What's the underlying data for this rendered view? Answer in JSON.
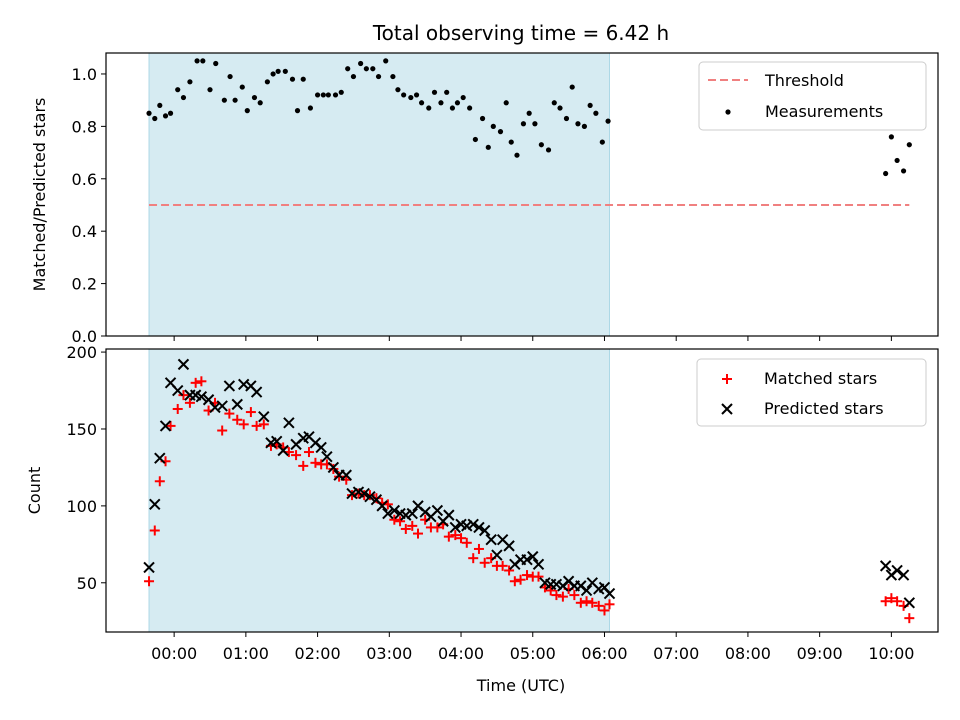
{
  "figure": {
    "title": "Total observing time = 6.42 h",
    "xlabel": "Time (UTC)",
    "x_tick_labels": [
      "00:00",
      "01:00",
      "02:00",
      "03:00",
      "04:00",
      "05:00",
      "06:00",
      "07:00",
      "08:00",
      "09:00",
      "10:00"
    ]
  },
  "colors": {
    "shade": "#add8e6",
    "threshold": "#f08080",
    "matched": "#ff0000",
    "predicted": "#000000",
    "measurements": "#000000"
  },
  "chart_data": [
    {
      "type": "scatter",
      "panel": "top",
      "title": "Total observing time = 6.42 h",
      "ylabel": "Matched/Predicted stars",
      "xlim_hours": [
        -0.95,
        10.65
      ],
      "ylim": [
        0,
        1.08
      ],
      "y_ticks": [
        0.0,
        0.2,
        0.4,
        0.6,
        0.8,
        1.0
      ],
      "y_tick_labels": [
        "0.0",
        "0.2",
        "0.4",
        "0.6",
        "0.8",
        "1.0"
      ],
      "shaded_interval_hours": [
        -0.35,
        6.07
      ],
      "legend": {
        "placement": "upper right",
        "entries": [
          "Threshold",
          "Measurements"
        ]
      },
      "threshold": {
        "name": "Threshold",
        "value": 0.5,
        "x_range_hours": [
          -0.35,
          10.25
        ],
        "style": "dashed"
      },
      "series": [
        {
          "name": "Measurements",
          "x_hours": [
            -0.35,
            -0.27,
            -0.2,
            -0.12,
            -0.05,
            0.05,
            0.13,
            0.22,
            0.32,
            0.4,
            0.5,
            0.58,
            0.7,
            0.78,
            0.85,
            0.95,
            1.02,
            1.12,
            1.2,
            1.3,
            1.38,
            1.45,
            1.55,
            1.65,
            1.72,
            1.8,
            1.9,
            2.0,
            2.08,
            2.15,
            2.25,
            2.33,
            2.42,
            2.5,
            2.6,
            2.68,
            2.77,
            2.85,
            2.95,
            3.05,
            3.12,
            3.2,
            3.3,
            3.38,
            3.45,
            3.55,
            3.63,
            3.72,
            3.8,
            3.88,
            3.95,
            4.03,
            4.12,
            4.2,
            4.3,
            4.38,
            4.45,
            4.55,
            4.63,
            4.7,
            4.78,
            4.87,
            4.95,
            5.03,
            5.12,
            5.22,
            5.3,
            5.38,
            5.47,
            5.55,
            5.63,
            5.72,
            5.8,
            5.88,
            5.97,
            6.05,
            9.92,
            10.0,
            10.08,
            10.17,
            10.25
          ],
          "y": [
            0.85,
            0.83,
            0.88,
            0.84,
            0.85,
            0.94,
            0.91,
            0.97,
            1.05,
            1.05,
            0.94,
            1.04,
            0.9,
            0.99,
            0.9,
            0.95,
            0.86,
            0.91,
            0.89,
            0.97,
            1.0,
            1.01,
            1.01,
            0.98,
            0.86,
            0.98,
            0.87,
            0.92,
            0.92,
            0.92,
            0.92,
            0.93,
            1.02,
            0.99,
            1.04,
            1.02,
            1.02,
            0.99,
            1.05,
            0.99,
            0.94,
            0.92,
            0.91,
            0.92,
            0.89,
            0.87,
            0.93,
            0.89,
            0.93,
            0.87,
            0.89,
            0.91,
            0.87,
            0.75,
            0.83,
            0.72,
            0.8,
            0.78,
            0.89,
            0.74,
            0.69,
            0.81,
            0.85,
            0.81,
            0.73,
            0.71,
            0.89,
            0.87,
            0.83,
            0.95,
            0.81,
            0.8,
            0.88,
            0.85,
            0.74,
            0.82,
            0.62,
            0.76,
            0.67,
            0.63,
            0.73
          ]
        }
      ]
    },
    {
      "type": "scatter",
      "panel": "bottom",
      "ylabel": "Count",
      "xlabel": "Time (UTC)",
      "xlim_hours": [
        -0.95,
        10.65
      ],
      "ylim": [
        18,
        202
      ],
      "y_ticks": [
        50,
        100,
        150,
        200
      ],
      "y_tick_labels": [
        "50",
        "100",
        "150",
        "200"
      ],
      "shaded_interval_hours": [
        -0.35,
        6.07
      ],
      "legend": {
        "placement": "upper right",
        "entries": [
          "Matched stars",
          "Predicted stars"
        ]
      },
      "series": [
        {
          "name": "Matched stars",
          "marker": "plus",
          "x_hours": [
            -0.35,
            -0.27,
            -0.2,
            -0.12,
            -0.05,
            0.05,
            0.13,
            0.22,
            0.3,
            0.38,
            0.48,
            0.57,
            0.67,
            0.77,
            0.88,
            0.97,
            1.07,
            1.15,
            1.25,
            1.35,
            1.43,
            1.52,
            1.6,
            1.7,
            1.8,
            1.88,
            1.97,
            2.05,
            2.13,
            2.22,
            2.3,
            2.4,
            2.48,
            2.57,
            2.65,
            2.73,
            2.82,
            2.9,
            2.98,
            3.07,
            3.15,
            3.23,
            3.32,
            3.4,
            3.5,
            3.58,
            3.67,
            3.75,
            3.83,
            3.92,
            4.0,
            4.08,
            4.17,
            4.25,
            4.33,
            4.42,
            4.5,
            4.58,
            4.67,
            4.75,
            4.83,
            4.92,
            5.0,
            5.08,
            5.17,
            5.25,
            5.33,
            5.42,
            5.5,
            5.58,
            5.67,
            5.75,
            5.83,
            5.92,
            6.0,
            6.07,
            9.92,
            10.0,
            10.08,
            10.17,
            10.25
          ],
          "y": [
            51,
            84,
            116,
            129,
            152,
            163,
            172,
            167,
            180,
            181,
            162,
            167,
            149,
            160,
            156,
            153,
            161,
            152,
            153,
            139,
            140,
            138,
            135,
            133,
            126,
            135,
            128,
            127,
            127,
            124,
            119,
            117,
            107,
            108,
            107,
            107,
            105,
            102,
            101,
            91,
            90,
            85,
            87,
            82,
            91,
            86,
            86,
            88,
            80,
            81,
            79,
            76,
            66,
            72,
            63,
            66,
            61,
            61,
            58,
            51,
            52,
            55,
            54,
            54,
            47,
            45,
            42,
            41,
            46,
            42,
            37,
            38,
            37,
            35,
            32,
            36,
            38,
            40,
            38,
            35,
            27
          ]
        },
        {
          "name": "Predicted stars",
          "marker": "x",
          "x_hours": [
            -0.35,
            -0.27,
            -0.2,
            -0.12,
            -0.05,
            0.05,
            0.13,
            0.22,
            0.3,
            0.38,
            0.48,
            0.57,
            0.67,
            0.77,
            0.88,
            0.97,
            1.07,
            1.15,
            1.25,
            1.35,
            1.43,
            1.52,
            1.6,
            1.7,
            1.8,
            1.88,
            1.97,
            2.05,
            2.13,
            2.22,
            2.3,
            2.4,
            2.48,
            2.57,
            2.65,
            2.73,
            2.82,
            2.9,
            2.98,
            3.07,
            3.15,
            3.23,
            3.32,
            3.4,
            3.5,
            3.58,
            3.67,
            3.75,
            3.83,
            3.92,
            4.0,
            4.08,
            4.17,
            4.25,
            4.33,
            4.42,
            4.5,
            4.58,
            4.67,
            4.75,
            4.83,
            4.92,
            5.0,
            5.08,
            5.17,
            5.25,
            5.33,
            5.42,
            5.5,
            5.58,
            5.67,
            5.75,
            5.83,
            5.92,
            6.0,
            6.07,
            9.92,
            10.0,
            10.08,
            10.17,
            10.25
          ],
          "y": [
            60,
            101,
            131,
            152,
            180,
            175,
            192,
            172,
            172,
            171,
            169,
            164,
            165,
            178,
            166,
            179,
            178,
            174,
            158,
            141,
            142,
            136,
            154,
            140,
            144,
            145,
            141,
            138,
            132,
            125,
            120,
            120,
            108,
            109,
            108,
            106,
            104,
            100,
            95,
            97,
            95,
            94,
            95,
            100,
            96,
            93,
            97,
            90,
            94,
            86,
            88,
            87,
            88,
            86,
            84,
            78,
            68,
            78,
            74,
            62,
            65,
            65,
            67,
            62,
            50,
            49,
            49,
            48,
            51,
            48,
            48,
            45,
            50,
            46,
            47,
            43,
            61,
            55,
            58,
            55,
            37
          ]
        }
      ]
    }
  ]
}
